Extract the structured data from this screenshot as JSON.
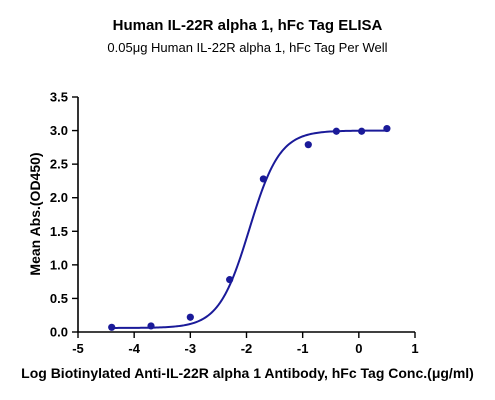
{
  "chart_data": {
    "type": "line",
    "title": "Human IL-22R alpha 1, hFc Tag ELISA",
    "subtitle": "0.05μg Human IL-22R alpha 1, hFc Tag Per Well",
    "xlabel": "Log Biotinylated Anti-IL-22R alpha 1 Antibody, hFc Tag Conc.(μg/ml)",
    "ylabel": "Mean Abs.(OD450)",
    "xlim": [
      -5,
      1
    ],
    "ylim": [
      0,
      3.5
    ],
    "xticks": [
      "-5",
      "-4",
      "-3",
      "-2",
      "-1",
      "0",
      "1"
    ],
    "yticks": [
      "0.0",
      "0.5",
      "1.0",
      "1.5",
      "2.0",
      "2.5",
      "3.0",
      "3.5"
    ],
    "grid": false,
    "legend": "none",
    "series": [
      {
        "points": [
          {
            "x": -4.4,
            "y": 0.07
          },
          {
            "x": -3.7,
            "y": 0.09
          },
          {
            "x": -3.0,
            "y": 0.22
          },
          {
            "x": -2.3,
            "y": 0.78
          },
          {
            "x": -1.7,
            "y": 2.28
          },
          {
            "x": -0.9,
            "y": 2.79
          },
          {
            "x": -0.4,
            "y": 2.99
          },
          {
            "x": 0.05,
            "y": 2.99
          },
          {
            "x": 0.5,
            "y": 3.03
          }
        ],
        "fit": {
          "bottom": 0.06,
          "top": 3.0,
          "logEC50": -1.95,
          "hill": 1.6
        }
      }
    ],
    "colors": {
      "series": "#1a1a99",
      "axis": "#000000"
    }
  }
}
